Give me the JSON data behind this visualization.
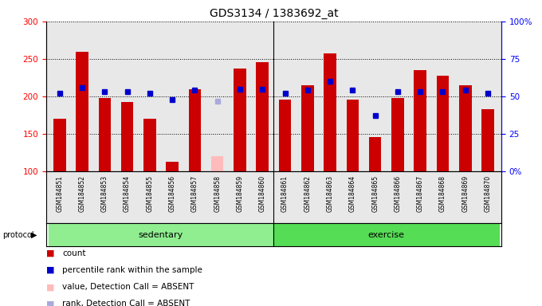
{
  "title": "GDS3134 / 1383692_at",
  "samples": [
    "GSM184851",
    "GSM184852",
    "GSM184853",
    "GSM184854",
    "GSM184855",
    "GSM184856",
    "GSM184857",
    "GSM184858",
    "GSM184859",
    "GSM184860",
    "GSM184861",
    "GSM184862",
    "GSM184863",
    "GSM184864",
    "GSM184865",
    "GSM184866",
    "GSM184867",
    "GSM184868",
    "GSM184869",
    "GSM184870"
  ],
  "counts": [
    170,
    260,
    198,
    192,
    170,
    113,
    210,
    120,
    237,
    246,
    196,
    215,
    257,
    196,
    146,
    198,
    235,
    228,
    215,
    183
  ],
  "absent_value_idx": 7,
  "absent_value": 120,
  "percentile_ranks": [
    52,
    56,
    53,
    53,
    52,
    48,
    54,
    null,
    55,
    55,
    52,
    54,
    60,
    54,
    37,
    53,
    53,
    53,
    54,
    52
  ],
  "absent_rank_idx": 7,
  "absent_rank_value": 47,
  "protocol_groups": [
    {
      "label": "sedentary",
      "start": 0,
      "end": 9
    },
    {
      "label": "exercise",
      "start": 10,
      "end": 19
    }
  ],
  "ylim_left": [
    100,
    300
  ],
  "ylim_right": [
    0,
    100
  ],
  "yticks_left": [
    100,
    150,
    200,
    250,
    300
  ],
  "yticks_right": [
    0,
    25,
    50,
    75,
    100
  ],
  "bar_color": "#cc0000",
  "absent_bar_color": "#ffbbbb",
  "dot_color": "#0000cc",
  "absent_dot_color": "#aaaadd",
  "background_plot": "#e8e8e8",
  "bar_width": 0.55,
  "legend_items": [
    {
      "color": "#cc0000",
      "label": "count"
    },
    {
      "color": "#0000cc",
      "label": "percentile rank within the sample"
    },
    {
      "color": "#ffbbbb",
      "label": "value, Detection Call = ABSENT"
    },
    {
      "color": "#aaaadd",
      "label": "rank, Detection Call = ABSENT"
    }
  ]
}
